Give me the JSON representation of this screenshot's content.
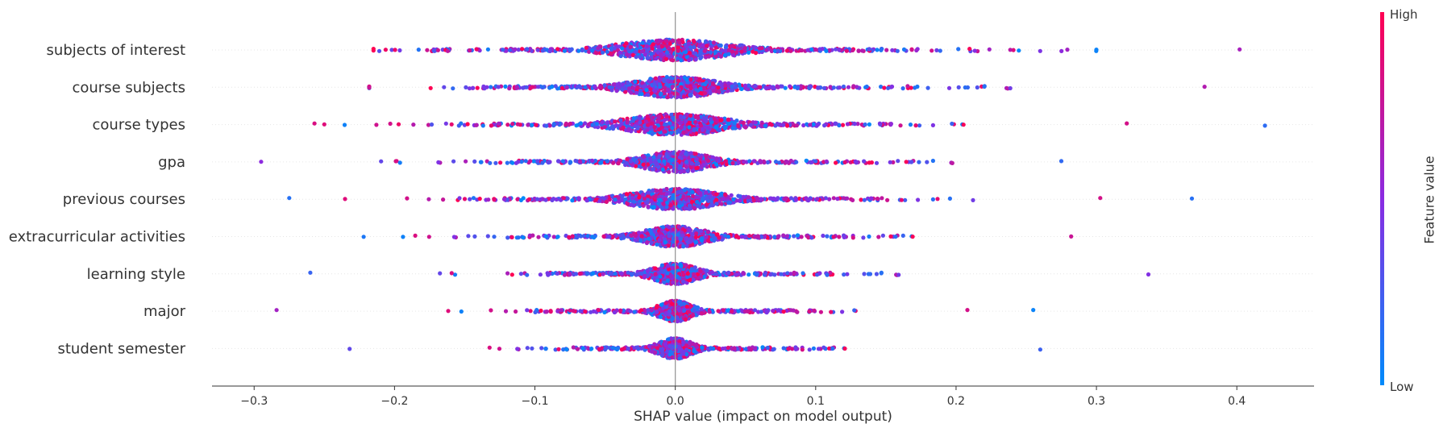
{
  "chart_data": {
    "type": "scatter",
    "subtype": "shap-beeswarm",
    "title": "",
    "xlabel": "SHAP value (impact on model output)",
    "ylabel": "",
    "xlim": [
      -0.33,
      0.455
    ],
    "xticks": [
      -0.3,
      -0.2,
      -0.1,
      0.0,
      0.1,
      0.2,
      0.3,
      0.4
    ],
    "xtick_labels": [
      "−0.3",
      "−0.2",
      "−0.1",
      "0.0",
      "0.1",
      "0.2",
      "0.3",
      "0.4"
    ],
    "grid": false,
    "features": [
      {
        "name": "subjects of interest",
        "min": -0.215,
        "max": 0.402,
        "core_width": 0.05,
        "spread": 0.1,
        "points": 900
      },
      {
        "name": "course subjects",
        "min": -0.218,
        "max": 0.377,
        "core_width": 0.038,
        "spread": 0.09,
        "points": 850
      },
      {
        "name": "course types",
        "min": -0.257,
        "max": 0.42,
        "core_width": 0.045,
        "spread": 0.085,
        "points": 850
      },
      {
        "name": "gpa",
        "min": -0.295,
        "max": 0.275,
        "core_width": 0.03,
        "spread": 0.075,
        "points": 780
      },
      {
        "name": "previous courses",
        "min": -0.275,
        "max": 0.368,
        "core_width": 0.04,
        "spread": 0.08,
        "points": 800
      },
      {
        "name": "extracurricular activities",
        "min": -0.222,
        "max": 0.282,
        "core_width": 0.028,
        "spread": 0.07,
        "points": 720
      },
      {
        "name": "learning style",
        "min": -0.26,
        "max": 0.337,
        "core_width": 0.02,
        "spread": 0.06,
        "points": 680
      },
      {
        "name": "major",
        "min": -0.284,
        "max": 0.255,
        "core_width": 0.015,
        "spread": 0.055,
        "points": 640
      },
      {
        "name": "student semester",
        "min": -0.232,
        "max": 0.26,
        "core_width": 0.015,
        "spread": 0.05,
        "points": 620
      }
    ],
    "colorbar": {
      "label": "Feature value",
      "high_label": "High",
      "low_label": "Low",
      "high_color": "#ff0052",
      "mid_color": "#8a2be2",
      "low_color": "#008bfb"
    },
    "zero_line_color": "#999999"
  }
}
